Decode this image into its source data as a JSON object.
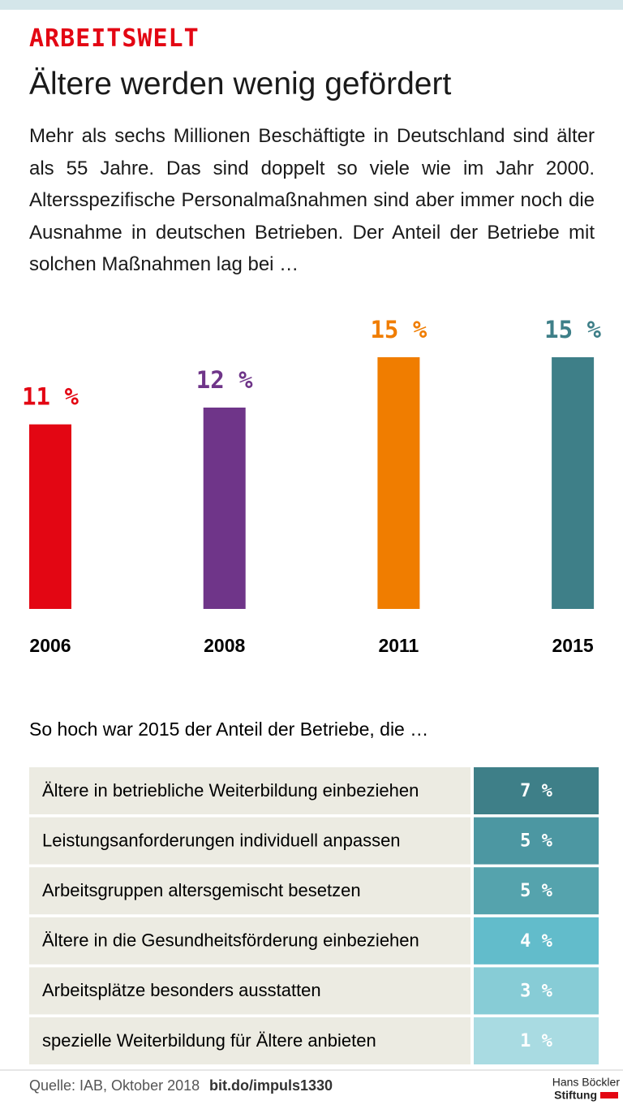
{
  "header": {
    "kicker": "ARBEITSWELT",
    "title": "Ältere werden wenig gefördert",
    "intro": "Mehr als sechs Millionen Beschäftigte in Deutschland sind älter als 55 Jahre. Das sind doppelt so viele wie im Jahr 2000. Altersspezifische Personalmaßnahmen sind aber immer noch die Ausnahme in deutschen Betrie­ben. Der Anteil der Betriebe mit solchen Maßnahmen lag bei …"
  },
  "chart_data": {
    "type": "bar",
    "categories": [
      "2006",
      "2008",
      "2011",
      "2015"
    ],
    "values": [
      11,
      12,
      15,
      15
    ],
    "value_labels": [
      "11 %",
      "12 %",
      "15 %",
      "15 %"
    ],
    "colors": [
      "#e30613",
      "#6f3589",
      "#f07d00",
      "#3e7f88"
    ],
    "ylim": [
      0,
      15
    ]
  },
  "table": {
    "title": "So hoch war 2015 der Anteil der Betriebe, die …",
    "rows": [
      [
        "Ältere in betriebliche Weiterbildung einbeziehen",
        "7 %"
      ],
      [
        "Leistungsanforderungen individuell anpassen",
        "5 %"
      ],
      [
        "Arbeitsgruppen altersgemischt besetzen",
        "5 %"
      ],
      [
        "Ältere in die Gesundheitsförderung einbeziehen",
        "4 %"
      ],
      [
        "Arbeitsplätze besonders ausstatten",
        "3 %"
      ],
      [
        "spezielle Weiterbildung für Ältere anbieten",
        "1 %"
      ]
    ],
    "colors": [
      "#3e7f88",
      "#4c97a2",
      "#55a3ad",
      "#62bccb",
      "#87ccd6",
      "#a9dbe2"
    ]
  },
  "footer": {
    "source": "Quelle: IAB, Oktober 2018",
    "link": "bit.do/impuls1330",
    "logo_top": "Hans Böckler",
    "logo_bottom": "Stiftung"
  }
}
